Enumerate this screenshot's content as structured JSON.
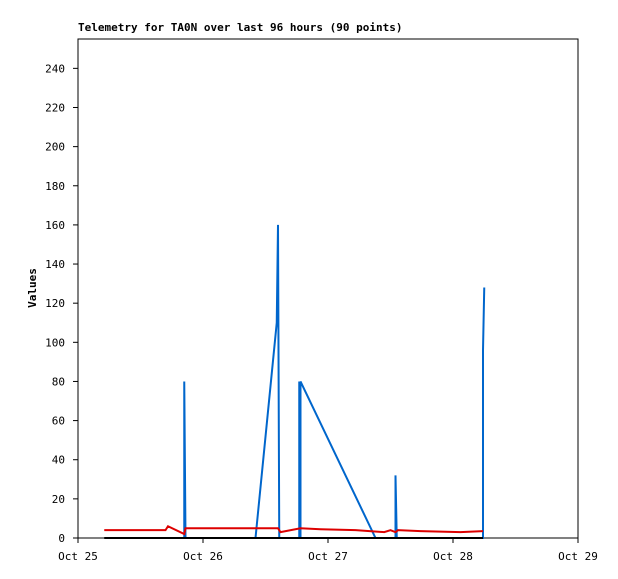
{
  "chart_data": {
    "type": "line",
    "title": "Telemetry for TA0N over last 96 hours (90 points)",
    "y_label": "Values",
    "xlim": [
      0,
      4
    ],
    "xticks": [
      {
        "value": 0,
        "label": "Oct 25"
      },
      {
        "value": 1,
        "label": "Oct 26"
      },
      {
        "value": 2,
        "label": "Oct 27"
      },
      {
        "value": 3,
        "label": "Oct 28"
      },
      {
        "value": 4,
        "label": "Oct 29"
      }
    ],
    "ylim": [
      0,
      255
    ],
    "yticks": [
      0,
      20,
      40,
      60,
      80,
      100,
      120,
      140,
      160,
      180,
      200,
      220,
      240
    ],
    "grid": false,
    "series": [
      {
        "color": "#0066cc",
        "x": [
          0.85,
          0.85,
          0.86,
          1.42,
          1.59,
          1.6,
          1.61,
          1.77,
          1.77,
          1.78,
          1.78,
          2.38,
          2.54,
          2.54,
          2.55,
          3.24,
          3.24,
          3.25
        ],
        "values": [
          0,
          80,
          0,
          0,
          110,
          160,
          0,
          0,
          80,
          0,
          80,
          0,
          0,
          32,
          0,
          0,
          96,
          128
        ]
      },
      {
        "color": "#dd0000",
        "x": [
          0.21,
          0.7,
          0.72,
          0.85,
          0.86,
          1.6,
          1.62,
          1.78,
          1.94,
          2.22,
          2.45,
          2.5,
          2.54,
          2.56,
          2.74,
          3.06,
          3.24
        ],
        "values": [
          4,
          4,
          6,
          2,
          5,
          5,
          3,
          5,
          4.5,
          4,
          3,
          4,
          3,
          4,
          3.5,
          3,
          3.5
        ]
      },
      {
        "color": "#000000",
        "x": [
          0.21,
          3.24
        ],
        "values": [
          0,
          0
        ]
      }
    ]
  }
}
